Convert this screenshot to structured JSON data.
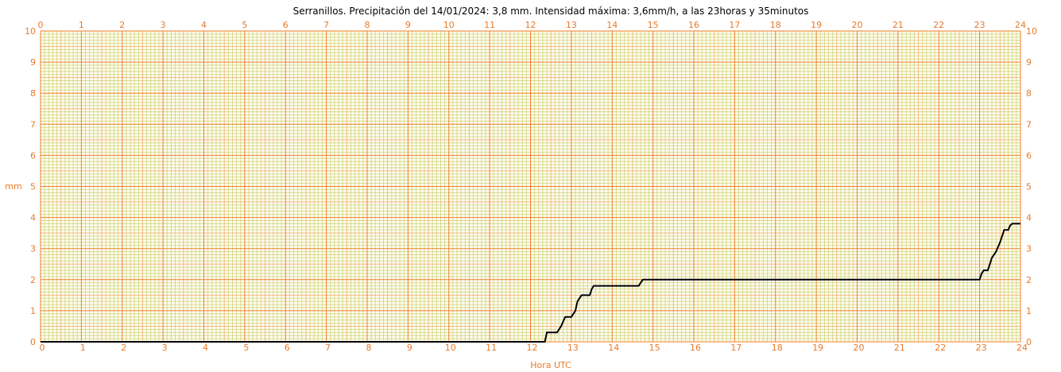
{
  "colors": {
    "major_grid": "#f07f2a",
    "minor_grid": "#f5b77d",
    "fine_grid": "#d8d98a",
    "tick_text": "#e87a2a",
    "series": "#000000"
  },
  "chart_data": {
    "type": "line",
    "title": "Serranillos. Precipitación del 14/01/2024: 3,8 mm. Intensidad máxima: 3,6mm/h, a las 23horas y 35minutos",
    "xlabel": "Hora UTC",
    "ylabel": "mm",
    "xlim": [
      0,
      24
    ],
    "ylim": [
      0,
      10
    ],
    "x_ticks": [
      "0",
      "1",
      "2",
      "3",
      "4",
      "5",
      "6",
      "7",
      "8",
      "9",
      "10",
      "11",
      "12",
      "13",
      "14",
      "15",
      "16",
      "17",
      "18",
      "19",
      "20",
      "21",
      "22",
      "23",
      "24"
    ],
    "y_ticks": [
      "0",
      "1",
      "2",
      "3",
      "4",
      "5",
      "6",
      "7",
      "8",
      "9",
      "10"
    ],
    "grid": true,
    "series": [
      {
        "x": [
          0,
          12.35,
          12.4,
          12.65,
          12.75,
          12.85,
          13.0,
          13.1,
          13.15,
          13.25,
          13.45,
          13.5,
          13.55,
          14.65,
          14.7,
          14.75,
          23.0,
          23.05,
          23.1,
          23.2,
          23.25,
          23.3,
          23.4,
          23.5,
          23.55,
          23.6,
          23.7,
          23.75,
          23.8,
          24.0
        ],
        "y": [
          0,
          0,
          0.3,
          0.3,
          0.5,
          0.8,
          0.8,
          1.0,
          1.3,
          1.5,
          1.5,
          1.7,
          1.8,
          1.8,
          1.9,
          2.0,
          2.0,
          2.2,
          2.3,
          2.3,
          2.5,
          2.7,
          2.9,
          3.2,
          3.4,
          3.6,
          3.6,
          3.75,
          3.8,
          3.8
        ]
      }
    ]
  }
}
